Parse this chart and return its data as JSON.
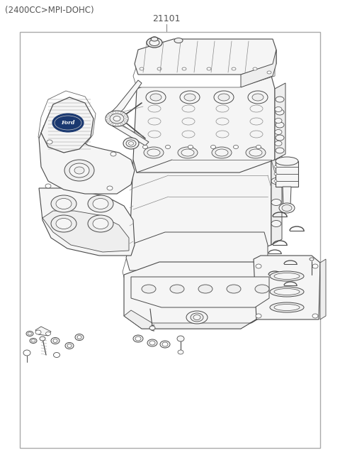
{
  "title": "(2400CC>MPI-DOHC)",
  "part_number": "21101",
  "bg": "#ffffff",
  "lc": "#4a4a4a",
  "lc2": "#666666",
  "lc_thin": "#888888",
  "title_fontsize": 8.5,
  "pn_fontsize": 9,
  "fig_width": 4.8,
  "fig_height": 6.55,
  "dpi": 100
}
